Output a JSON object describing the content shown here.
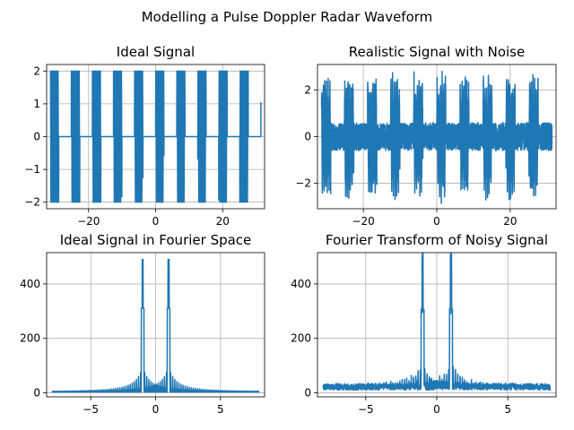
{
  "figure": {
    "suptitle": "Modelling a Pulse Doppler Radar Waveform"
  },
  "chart_data": [
    {
      "type": "line",
      "title": "Ideal Signal",
      "xlabel": "",
      "ylabel": "",
      "xlim": [
        -32.5,
        32.5
      ],
      "ylim": [
        -2.2,
        2.2
      ],
      "xticks": [
        -20,
        0,
        20
      ],
      "xtick_labels": [
        "−20",
        "0",
        "20"
      ],
      "yticks": [
        -2,
        -1,
        0,
        1,
        2
      ],
      "ytick_labels": [
        "−2",
        "−1",
        "0",
        "1",
        "2"
      ],
      "grid": true,
      "series": [
        {
          "color": "#1f77b4",
          "kind": "pulse_train",
          "x_start": -31.4,
          "x_end": 31.4,
          "pulse_period": 6.28,
          "pulse_width": 2.5,
          "pulse_amplitude": 2,
          "carrier_period": 0.45,
          "final_value": 1.05,
          "baseline": 0
        }
      ]
    },
    {
      "type": "line",
      "title": "Realistic Signal with Noise",
      "xlabel": "",
      "ylabel": "",
      "xlim": [
        -32.5,
        32.5
      ],
      "ylim": [
        -3.1,
        3.1
      ],
      "xticks": [
        -20,
        0,
        20
      ],
      "xtick_labels": [
        "−20",
        "0",
        "20"
      ],
      "yticks": [
        -2,
        0,
        2
      ],
      "ytick_labels": [
        "−2",
        "0",
        "2"
      ],
      "grid": true,
      "series": [
        {
          "color": "#1f77b4",
          "kind": "noisy_pulse_train",
          "x_start": -31.4,
          "x_end": 31.4,
          "pulse_period": 6.28,
          "pulse_width": 2.5,
          "pulse_amplitude": 2,
          "carrier_period": 0.45,
          "noise_level": 0.6
        }
      ]
    },
    {
      "type": "line",
      "title": "Ideal Signal in Fourier Space",
      "xlabel": "",
      "ylabel": "",
      "xlim": [
        -8.4,
        8.4
      ],
      "ylim": [
        -15,
        515
      ],
      "xticks": [
        -5,
        0,
        5
      ],
      "xtick_labels": [
        "−5",
        "0",
        "5"
      ],
      "yticks": [
        0,
        200,
        400
      ],
      "ytick_labels": [
        "0",
        "200",
        "400"
      ],
      "grid": true,
      "series": [
        {
          "color": "#1f77b4",
          "kind": "spectrum",
          "x_start": -8,
          "x_end": 8,
          "peak_freqs": [
            -1,
            1
          ],
          "peak_height": 490,
          "shoulder_height": 310,
          "sidelobe_spacing": 0.16,
          "floor": 3,
          "noise": 0
        }
      ]
    },
    {
      "type": "line",
      "title": "Fourier Transform of Noisy Signal",
      "xlabel": "",
      "ylabel": "",
      "xlim": [
        -8.4,
        8.4
      ],
      "ylim": [
        -15,
        515
      ],
      "xticks": [
        -5,
        0,
        5
      ],
      "xtick_labels": [
        "−5",
        "0",
        "5"
      ],
      "yticks": [
        0,
        200,
        400
      ],
      "ytick_labels": [
        "0",
        "200",
        "400"
      ],
      "grid": true,
      "series": [
        {
          "color": "#1f77b4",
          "kind": "spectrum",
          "x_start": -8,
          "x_end": 8,
          "peak_freqs": [
            -1,
            1
          ],
          "peak_height": 495,
          "shoulder_height": 290,
          "sidelobe_spacing": 0.16,
          "floor": 10,
          "noise": 22
        }
      ]
    }
  ]
}
